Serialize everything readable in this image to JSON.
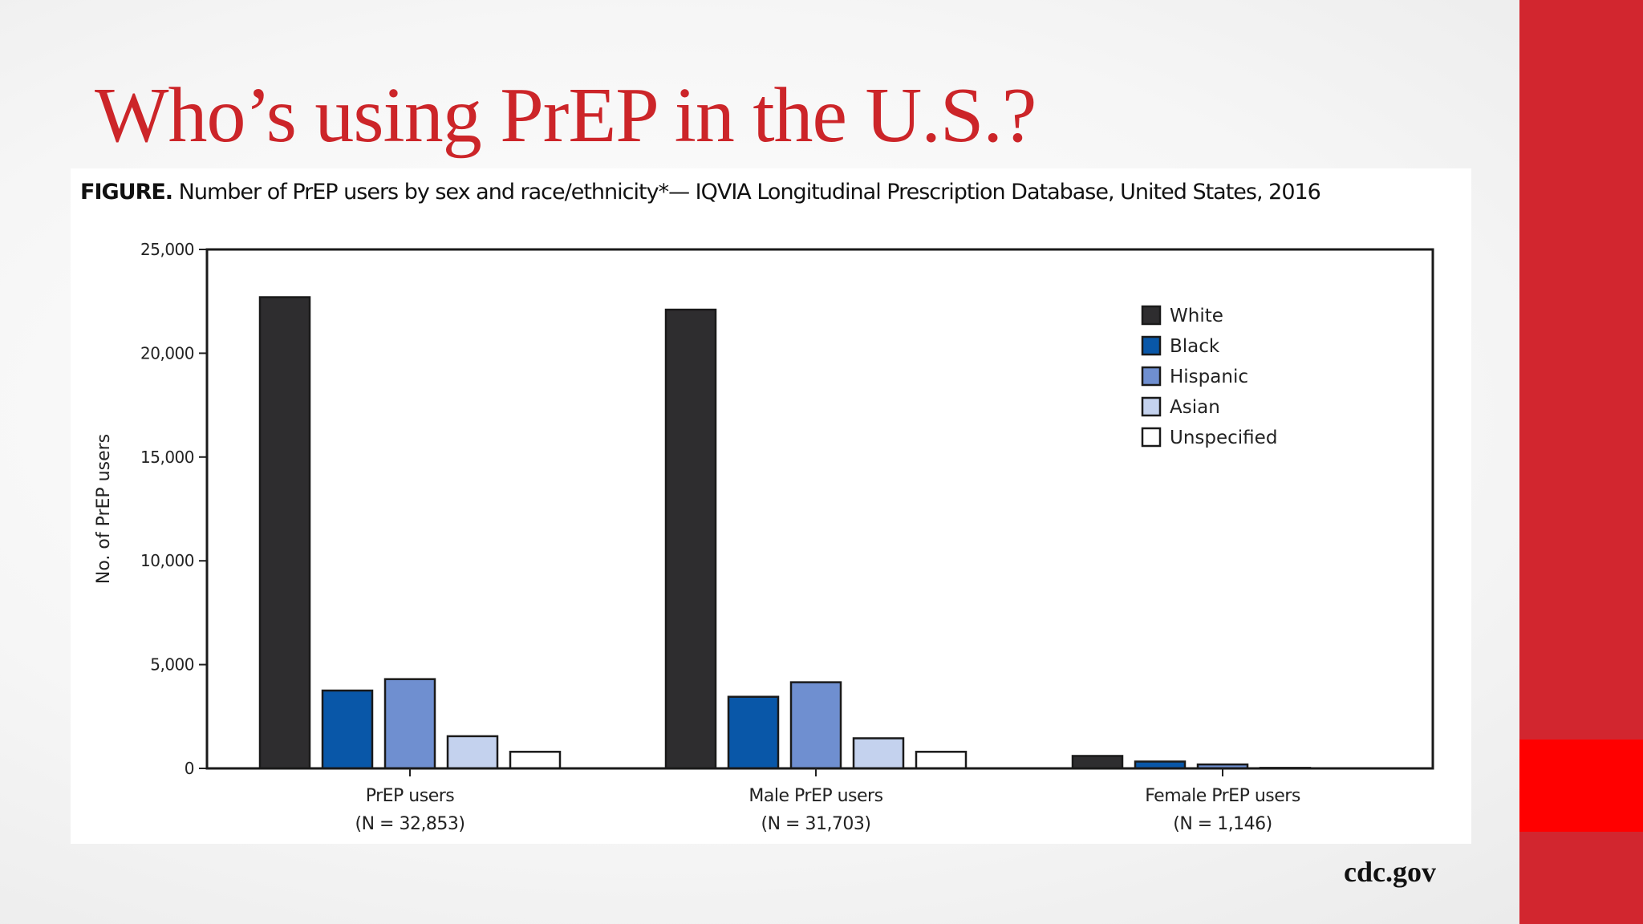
{
  "slide": {
    "title": "Who’s using PrEP in the U.S.?",
    "source": "cdc.gov",
    "colors": {
      "title": "#cc2529",
      "sidebar": "#d2262f",
      "sidebar_accent": "#ff0000"
    }
  },
  "figure": {
    "label": "FIGURE.",
    "caption": "Number of PrEP users by sex and race/ethnicity*— IQVIA Longitudinal Prescription Database, United States, 2016"
  },
  "chart_data": {
    "type": "bar",
    "ylabel": "No. of PrEP users",
    "xlabel": "",
    "ylim": [
      0,
      25000
    ],
    "yticks": [
      0,
      5000,
      10000,
      15000,
      20000,
      25000
    ],
    "ytick_labels": [
      "0",
      "5,000",
      "10,000",
      "15,000",
      "20,000",
      "25,000"
    ],
    "grid": false,
    "legend_position": "top-right",
    "categories": [
      "PrEP users",
      "Male PrEP users",
      "Female PrEP users"
    ],
    "category_sublabels": [
      "(N = 32,853)",
      "(N = 31,703)",
      "(N = 1,146)"
    ],
    "series": [
      {
        "name": "White",
        "color": "#2e2d2f",
        "values": [
          22700,
          22100,
          600
        ]
      },
      {
        "name": "Black",
        "color": "#0957a8",
        "values": [
          3750,
          3450,
          330
        ]
      },
      {
        "name": "Hispanic",
        "color": "#6f8fd0",
        "values": [
          4300,
          4150,
          190
        ]
      },
      {
        "name": "Asian",
        "color": "#c4d2ee",
        "values": [
          1550,
          1450,
          25
        ]
      },
      {
        "name": "Unspecified",
        "color": "#ffffff",
        "values": [
          800,
          800,
          10
        ]
      }
    ]
  }
}
